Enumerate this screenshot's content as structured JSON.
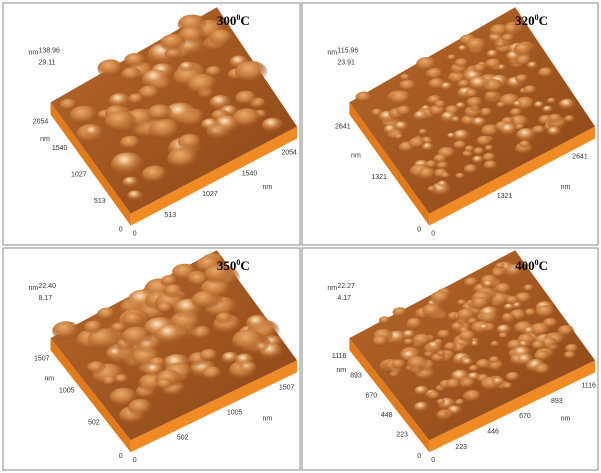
{
  "panels": [
    {
      "title": {
        "number": "300",
        "sup": "0",
        "unit": "C"
      },
      "z_unit": "nm",
      "z_labels": [
        "138.96",
        "29.11"
      ],
      "y_ticks": [
        "513",
        "1027",
        "1540",
        "2054"
      ],
      "y_unit": "nm",
      "x_ticks": [
        "513",
        "1027",
        "1540",
        "2054"
      ],
      "x_unit": "nm",
      "origin": [
        "0",
        "0"
      ]
    },
    {
      "title": {
        "number": "320",
        "sup": "0",
        "unit": "C"
      },
      "z_unit": "nm",
      "z_labels": [
        "115.96",
        "23.91"
      ],
      "y_ticks": [
        "1321",
        "2641"
      ],
      "y_unit": "nm",
      "x_ticks": [
        "1321",
        "2641"
      ],
      "x_unit": "nm",
      "origin": [
        "0",
        "0"
      ]
    },
    {
      "title": {
        "number": "350",
        "sup": "0",
        "unit": "C"
      },
      "z_unit": "nm",
      "z_labels": [
        "22.40",
        "8.17"
      ],
      "y_ticks": [
        "502",
        "1005",
        "1507"
      ],
      "y_unit": "nm",
      "x_ticks": [
        "502",
        "1005",
        "1507"
      ],
      "x_unit": "nm",
      "origin": [
        "0",
        "0"
      ]
    },
    {
      "title": {
        "number": "400",
        "sup": "0",
        "unit": "C"
      },
      "z_unit": "nm",
      "z_labels": [
        "22.27",
        "4.17"
      ],
      "y_ticks": [
        "223",
        "448",
        "670",
        "893",
        "1116"
      ],
      "y_unit": "nm",
      "x_ticks": [
        "223",
        "446",
        "670",
        "893",
        "1116"
      ],
      "x_unit": "nm",
      "origin": [
        "0",
        "0"
      ]
    }
  ]
}
